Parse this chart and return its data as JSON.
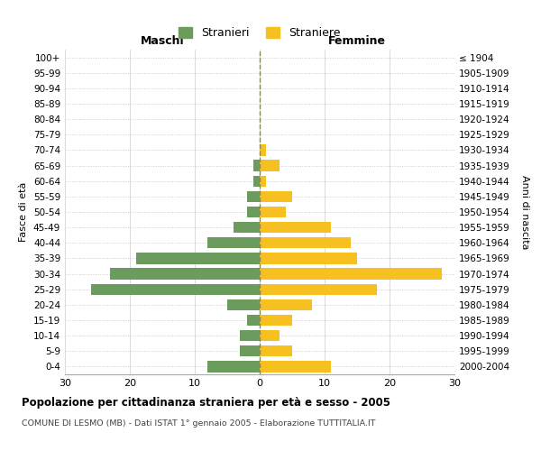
{
  "age_groups": [
    "0-4",
    "5-9",
    "10-14",
    "15-19",
    "20-24",
    "25-29",
    "30-34",
    "35-39",
    "40-44",
    "45-49",
    "50-54",
    "55-59",
    "60-64",
    "65-69",
    "70-74",
    "75-79",
    "80-84",
    "85-89",
    "90-94",
    "95-99",
    "100+"
  ],
  "birth_years": [
    "2000-2004",
    "1995-1999",
    "1990-1994",
    "1985-1989",
    "1980-1984",
    "1975-1979",
    "1970-1974",
    "1965-1969",
    "1960-1964",
    "1955-1959",
    "1950-1954",
    "1945-1949",
    "1940-1944",
    "1935-1939",
    "1930-1934",
    "1925-1929",
    "1920-1924",
    "1915-1919",
    "1910-1914",
    "1905-1909",
    "≤ 1904"
  ],
  "maschi": [
    8,
    3,
    3,
    2,
    5,
    26,
    23,
    19,
    8,
    4,
    2,
    2,
    1,
    1,
    0,
    0,
    0,
    0,
    0,
    0,
    0
  ],
  "femmine": [
    11,
    5,
    3,
    5,
    8,
    18,
    28,
    15,
    14,
    11,
    4,
    5,
    1,
    3,
    1,
    0,
    0,
    0,
    0,
    0,
    0
  ],
  "color_maschi": "#6b9c5e",
  "color_femmine": "#f5c020",
  "background_color": "#ffffff",
  "grid_color": "#cccccc",
  "dashed_line_color": "#888855",
  "title": "Popolazione per cittadinanza straniera per età e sesso - 2005",
  "subtitle": "COMUNE DI LESMO (MB) - Dati ISTAT 1° gennaio 2005 - Elaborazione TUTTITALIA.IT",
  "xlabel_left": "Maschi",
  "xlabel_right": "Femmine",
  "ylabel_left": "Fasce di età",
  "ylabel_right": "Anni di nascita",
  "xlim": 30,
  "legend_maschi": "Stranieri",
  "legend_femmine": "Straniere"
}
